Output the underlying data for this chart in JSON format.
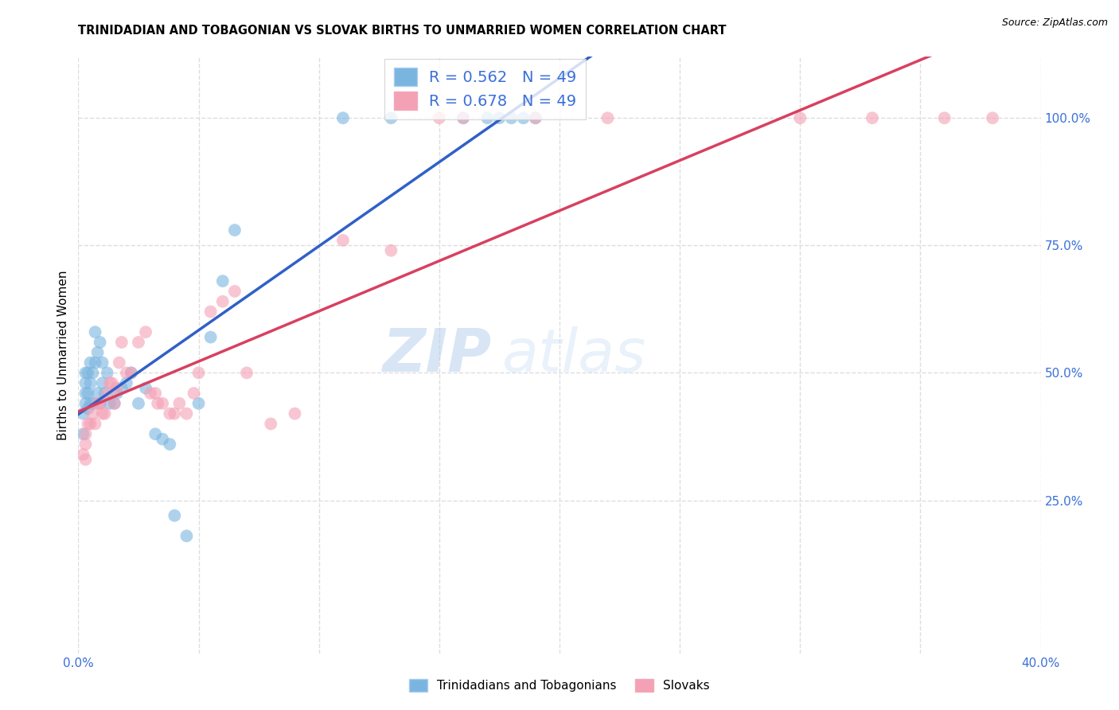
{
  "title": "TRINIDADIAN AND TOBAGONIAN VS SLOVAK BIRTHS TO UNMARRIED WOMEN CORRELATION CHART",
  "source": "Source: ZipAtlas.com",
  "ylabel": "Births to Unmarried Women",
  "xlim": [
    0.0,
    0.4
  ],
  "ylim": [
    -0.05,
    1.12
  ],
  "xticks": [
    0.0,
    0.05,
    0.1,
    0.15,
    0.2,
    0.25,
    0.3,
    0.35,
    0.4
  ],
  "xticklabels": [
    "0.0%",
    "",
    "",
    "",
    "",
    "",
    "",
    "",
    "40.0%"
  ],
  "yticks_right": [
    0.25,
    0.5,
    0.75,
    1.0
  ],
  "ytick_labels_right": [
    "25.0%",
    "50.0%",
    "75.0%",
    "100.0%"
  ],
  "grid_color": "#dddddd",
  "background_color": "#ffffff",
  "blue_color": "#7ab5e0",
  "pink_color": "#f4a0b5",
  "blue_line_color": "#3060c8",
  "pink_line_color": "#d84060",
  "R_blue": 0.562,
  "R_pink": 0.678,
  "N_blue": 49,
  "N_pink": 49,
  "legend_label_blue": "Trinidadians and Tobagonians",
  "legend_label_pink": "Slovaks",
  "blue_x": [
    0.002,
    0.002,
    0.003,
    0.003,
    0.003,
    0.003,
    0.004,
    0.004,
    0.004,
    0.005,
    0.005,
    0.005,
    0.006,
    0.006,
    0.007,
    0.007,
    0.008,
    0.008,
    0.009,
    0.009,
    0.01,
    0.01,
    0.011,
    0.012,
    0.013,
    0.015,
    0.016,
    0.018,
    0.02,
    0.022,
    0.025,
    0.028,
    0.032,
    0.035,
    0.038,
    0.04,
    0.045,
    0.05,
    0.055,
    0.06,
    0.065,
    0.11,
    0.13,
    0.16,
    0.17,
    0.175,
    0.18,
    0.185,
    0.19
  ],
  "blue_y": [
    0.38,
    0.42,
    0.44,
    0.46,
    0.48,
    0.5,
    0.43,
    0.46,
    0.5,
    0.44,
    0.48,
    0.52,
    0.44,
    0.5,
    0.52,
    0.58,
    0.46,
    0.54,
    0.44,
    0.56,
    0.48,
    0.52,
    0.46,
    0.5,
    0.44,
    0.44,
    0.46,
    0.47,
    0.48,
    0.5,
    0.44,
    0.47,
    0.38,
    0.37,
    0.36,
    0.22,
    0.18,
    0.44,
    0.57,
    0.68,
    0.78,
    1.0,
    1.0,
    1.0,
    1.0,
    1.0,
    1.0,
    1.0,
    1.0
  ],
  "pink_x": [
    0.002,
    0.003,
    0.003,
    0.003,
    0.004,
    0.005,
    0.006,
    0.007,
    0.008,
    0.009,
    0.01,
    0.011,
    0.012,
    0.013,
    0.014,
    0.015,
    0.016,
    0.017,
    0.018,
    0.02,
    0.022,
    0.025,
    0.028,
    0.03,
    0.032,
    0.033,
    0.035,
    0.038,
    0.04,
    0.042,
    0.045,
    0.048,
    0.05,
    0.055,
    0.06,
    0.065,
    0.07,
    0.08,
    0.09,
    0.11,
    0.13,
    0.15,
    0.16,
    0.19,
    0.22,
    0.3,
    0.33,
    0.36,
    0.38
  ],
  "pink_y": [
    0.34,
    0.33,
    0.36,
    0.38,
    0.4,
    0.4,
    0.42,
    0.4,
    0.44,
    0.44,
    0.42,
    0.42,
    0.46,
    0.48,
    0.48,
    0.44,
    0.47,
    0.52,
    0.56,
    0.5,
    0.5,
    0.56,
    0.58,
    0.46,
    0.46,
    0.44,
    0.44,
    0.42,
    0.42,
    0.44,
    0.42,
    0.46,
    0.5,
    0.62,
    0.64,
    0.66,
    0.5,
    0.4,
    0.42,
    0.76,
    0.74,
    1.0,
    1.0,
    1.0,
    1.0,
    1.0,
    1.0,
    1.0,
    1.0
  ]
}
